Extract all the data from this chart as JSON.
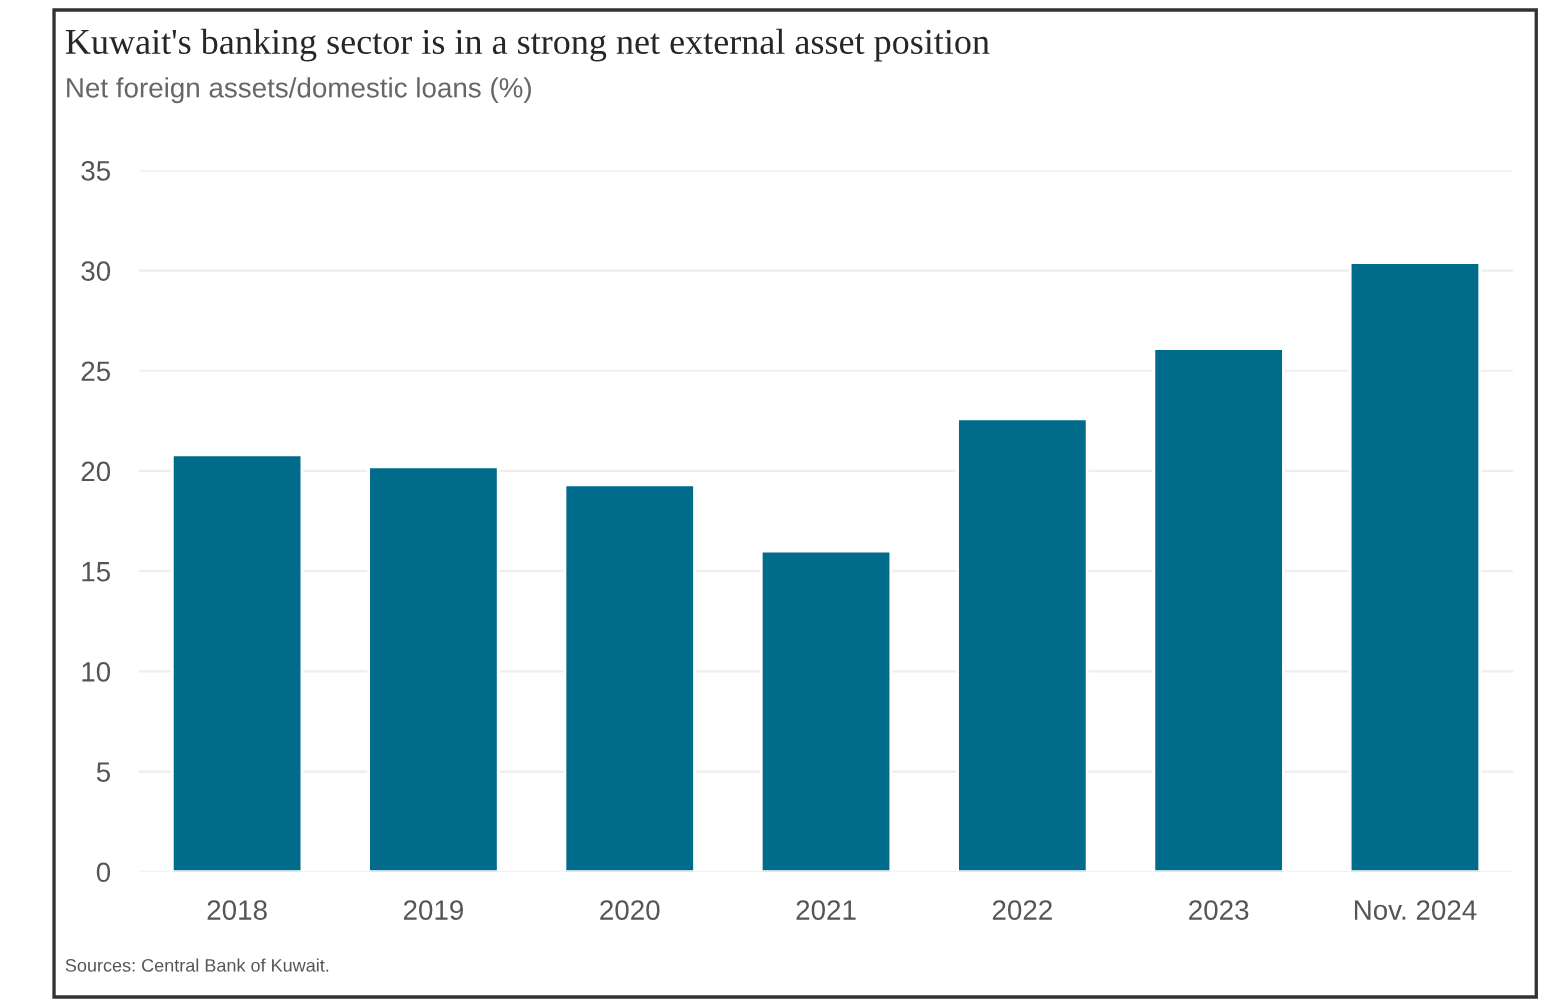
{
  "chart_data": {
    "type": "bar",
    "title": "Kuwait's banking sector is in a strong net external asset position",
    "subtitle": "Net foreign assets/domestic loans (%)",
    "categories": [
      "2018",
      "2019",
      "2020",
      "2021",
      "2022",
      "2023",
      "Nov. 2024"
    ],
    "values": [
      20.8,
      20.2,
      19.3,
      16.0,
      22.6,
      26.1,
      30.4
    ],
    "color": "#006b8a",
    "ylim": [
      0,
      35
    ],
    "yticks": [
      0,
      5,
      10,
      15,
      20,
      25,
      30,
      35
    ],
    "grid": "y",
    "annotations": [
      "Sources: Central Bank of Kuwait."
    ]
  }
}
